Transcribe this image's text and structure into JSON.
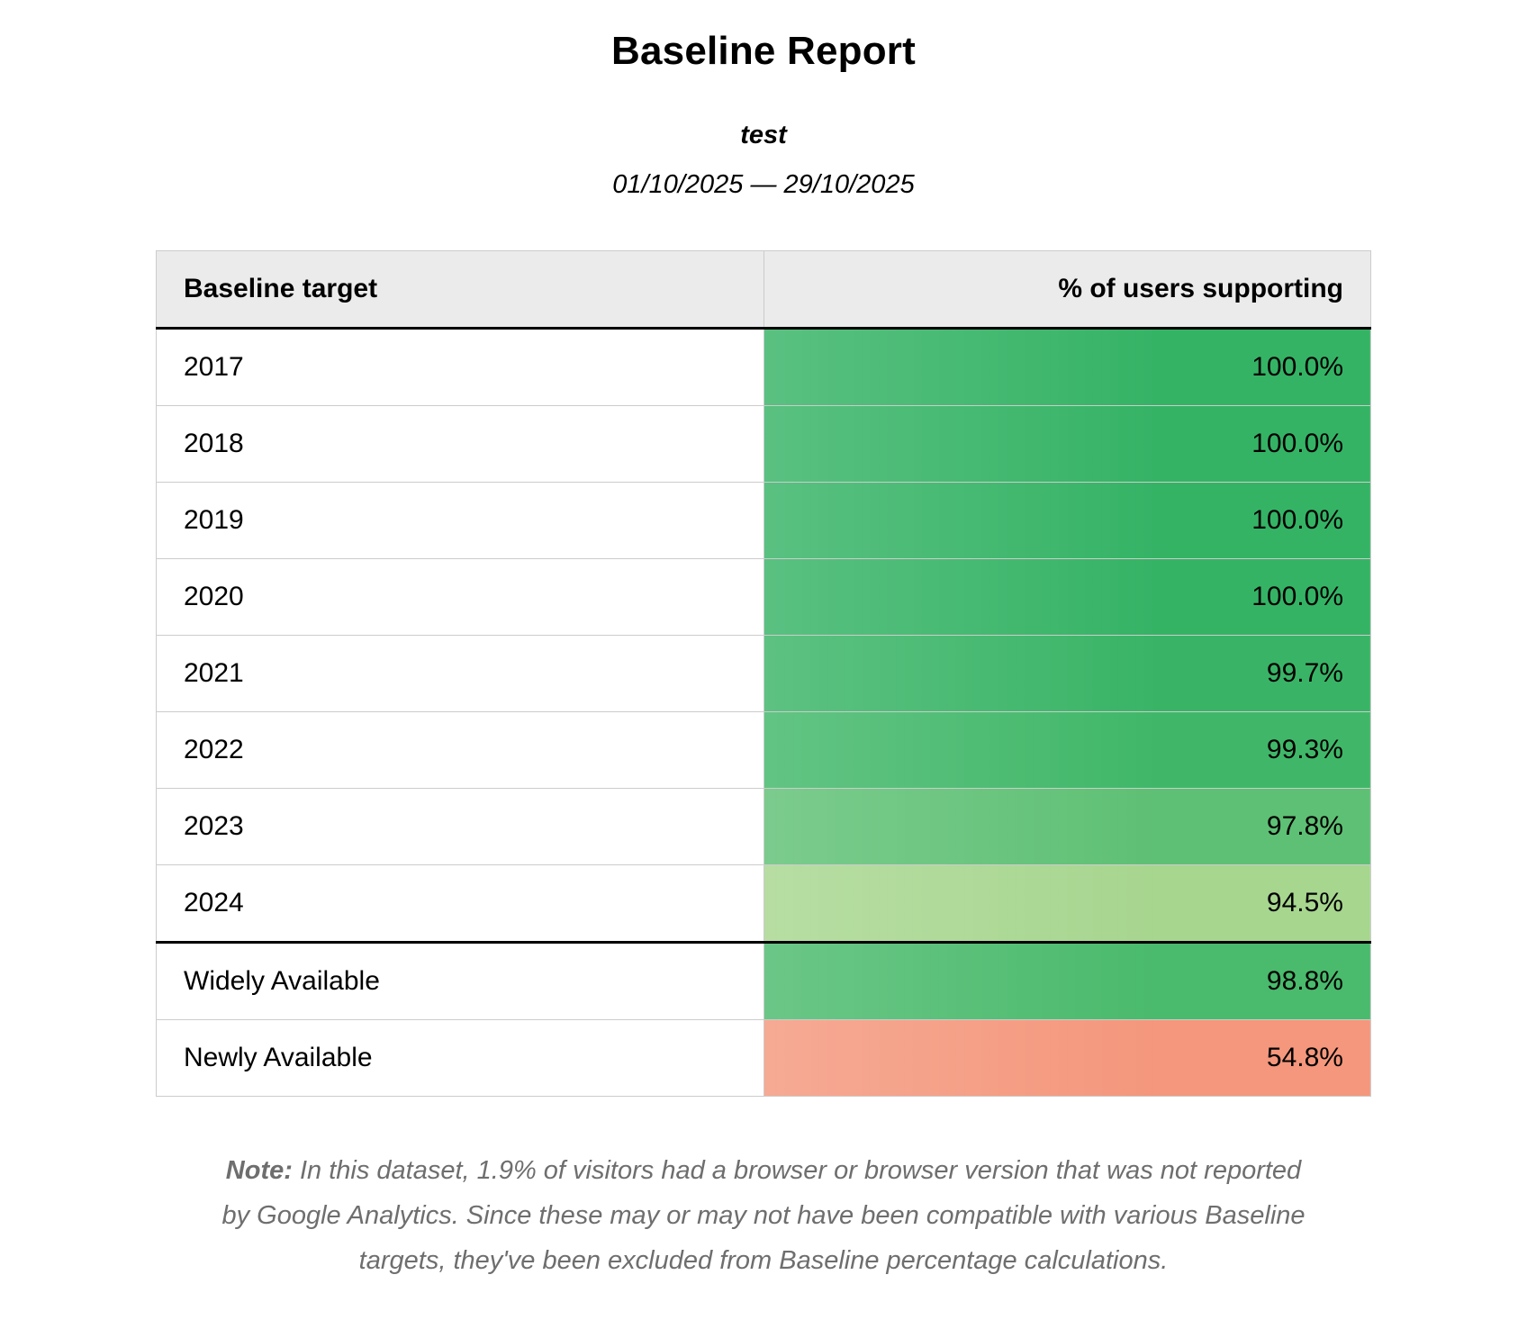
{
  "page": {
    "title": "Baseline Report",
    "subtitle": "test",
    "date_range": "01/10/2025 — 29/10/2025"
  },
  "table": {
    "columns": [
      {
        "label": "Baseline target",
        "align": "left"
      },
      {
        "label": "% of users supporting",
        "align": "right"
      }
    ],
    "rows": [
      {
        "label": "2017",
        "value": "100.0%",
        "color": "#35b365",
        "section": "year"
      },
      {
        "label": "2018",
        "value": "100.0%",
        "color": "#35b365",
        "section": "year"
      },
      {
        "label": "2019",
        "value": "100.0%",
        "color": "#35b365",
        "section": "year"
      },
      {
        "label": "2020",
        "value": "100.0%",
        "color": "#35b365",
        "section": "year"
      },
      {
        "label": "2021",
        "value": "99.7%",
        "color": "#39b466",
        "section": "year"
      },
      {
        "label": "2022",
        "value": "99.3%",
        "color": "#40b768",
        "section": "year"
      },
      {
        "label": "2023",
        "value": "97.8%",
        "color": "#5ec074",
        "section": "year"
      },
      {
        "label": "2024",
        "value": "94.5%",
        "color": "#a7d68f",
        "section": "year"
      },
      {
        "label": "Widely Available",
        "value": "98.8%",
        "color": "#4aba6c",
        "section": "baseline"
      },
      {
        "label": "Newly Available",
        "value": "54.8%",
        "color": "#f4977c",
        "section": "baseline"
      }
    ]
  },
  "note": {
    "label": "Note:",
    "text": " In this dataset, 1.9% of visitors had a browser or browser version that was not reported by Google Analytics. Since these may or may not have been compatible with various Baseline targets, they've been excluded from Baseline percentage calculations."
  }
}
